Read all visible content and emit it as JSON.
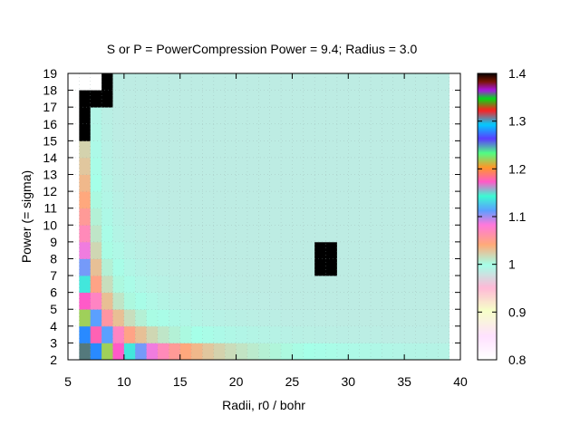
{
  "chart_data": {
    "type": "heatmap",
    "title": "S or P = PowerCompression  Power = 9.4; Radius = 3.0",
    "xlabel": "Radii, r0 / bohr",
    "ylabel": "Power (= sigma)",
    "xlim": [
      5,
      40
    ],
    "ylim": [
      2,
      19
    ],
    "xticks": [
      "5",
      "10",
      "15",
      "20",
      "25",
      "30",
      "35",
      "40"
    ],
    "yticks": [
      "2",
      "3",
      "4",
      "5",
      "6",
      "7",
      "8",
      "9",
      "10",
      "11",
      "12",
      "13",
      "14",
      "15",
      "16",
      "17",
      "18",
      "19"
    ],
    "cell_width": 1,
    "cell_height": 1,
    "x_start": 6,
    "x_end": 39,
    "y_start": 2,
    "y_end": 19,
    "baseline_value": 0.985,
    "colorbar": {
      "range": [
        0.8,
        1.4
      ],
      "ticks": [
        "0.8",
        "0.9",
        "1",
        "1.1",
        "1.2",
        "1.3",
        "1.4"
      ]
    },
    "saturated_cells": [
      {
        "x": 27,
        "y": 7,
        "w": 2,
        "h": 2,
        "value": 1.4
      },
      {
        "x": 6,
        "y": 15,
        "w": 1,
        "h": 3,
        "value": 1.4
      },
      {
        "x": 7,
        "y": 17,
        "w": 1,
        "h": 1,
        "value": 1.4
      },
      {
        "x": 8,
        "y": 17,
        "w": 1,
        "h": 2,
        "value": 1.4
      }
    ],
    "empty_cells": [
      {
        "x": 6,
        "y": 18,
        "w": 2,
        "h": 1
      }
    ]
  }
}
